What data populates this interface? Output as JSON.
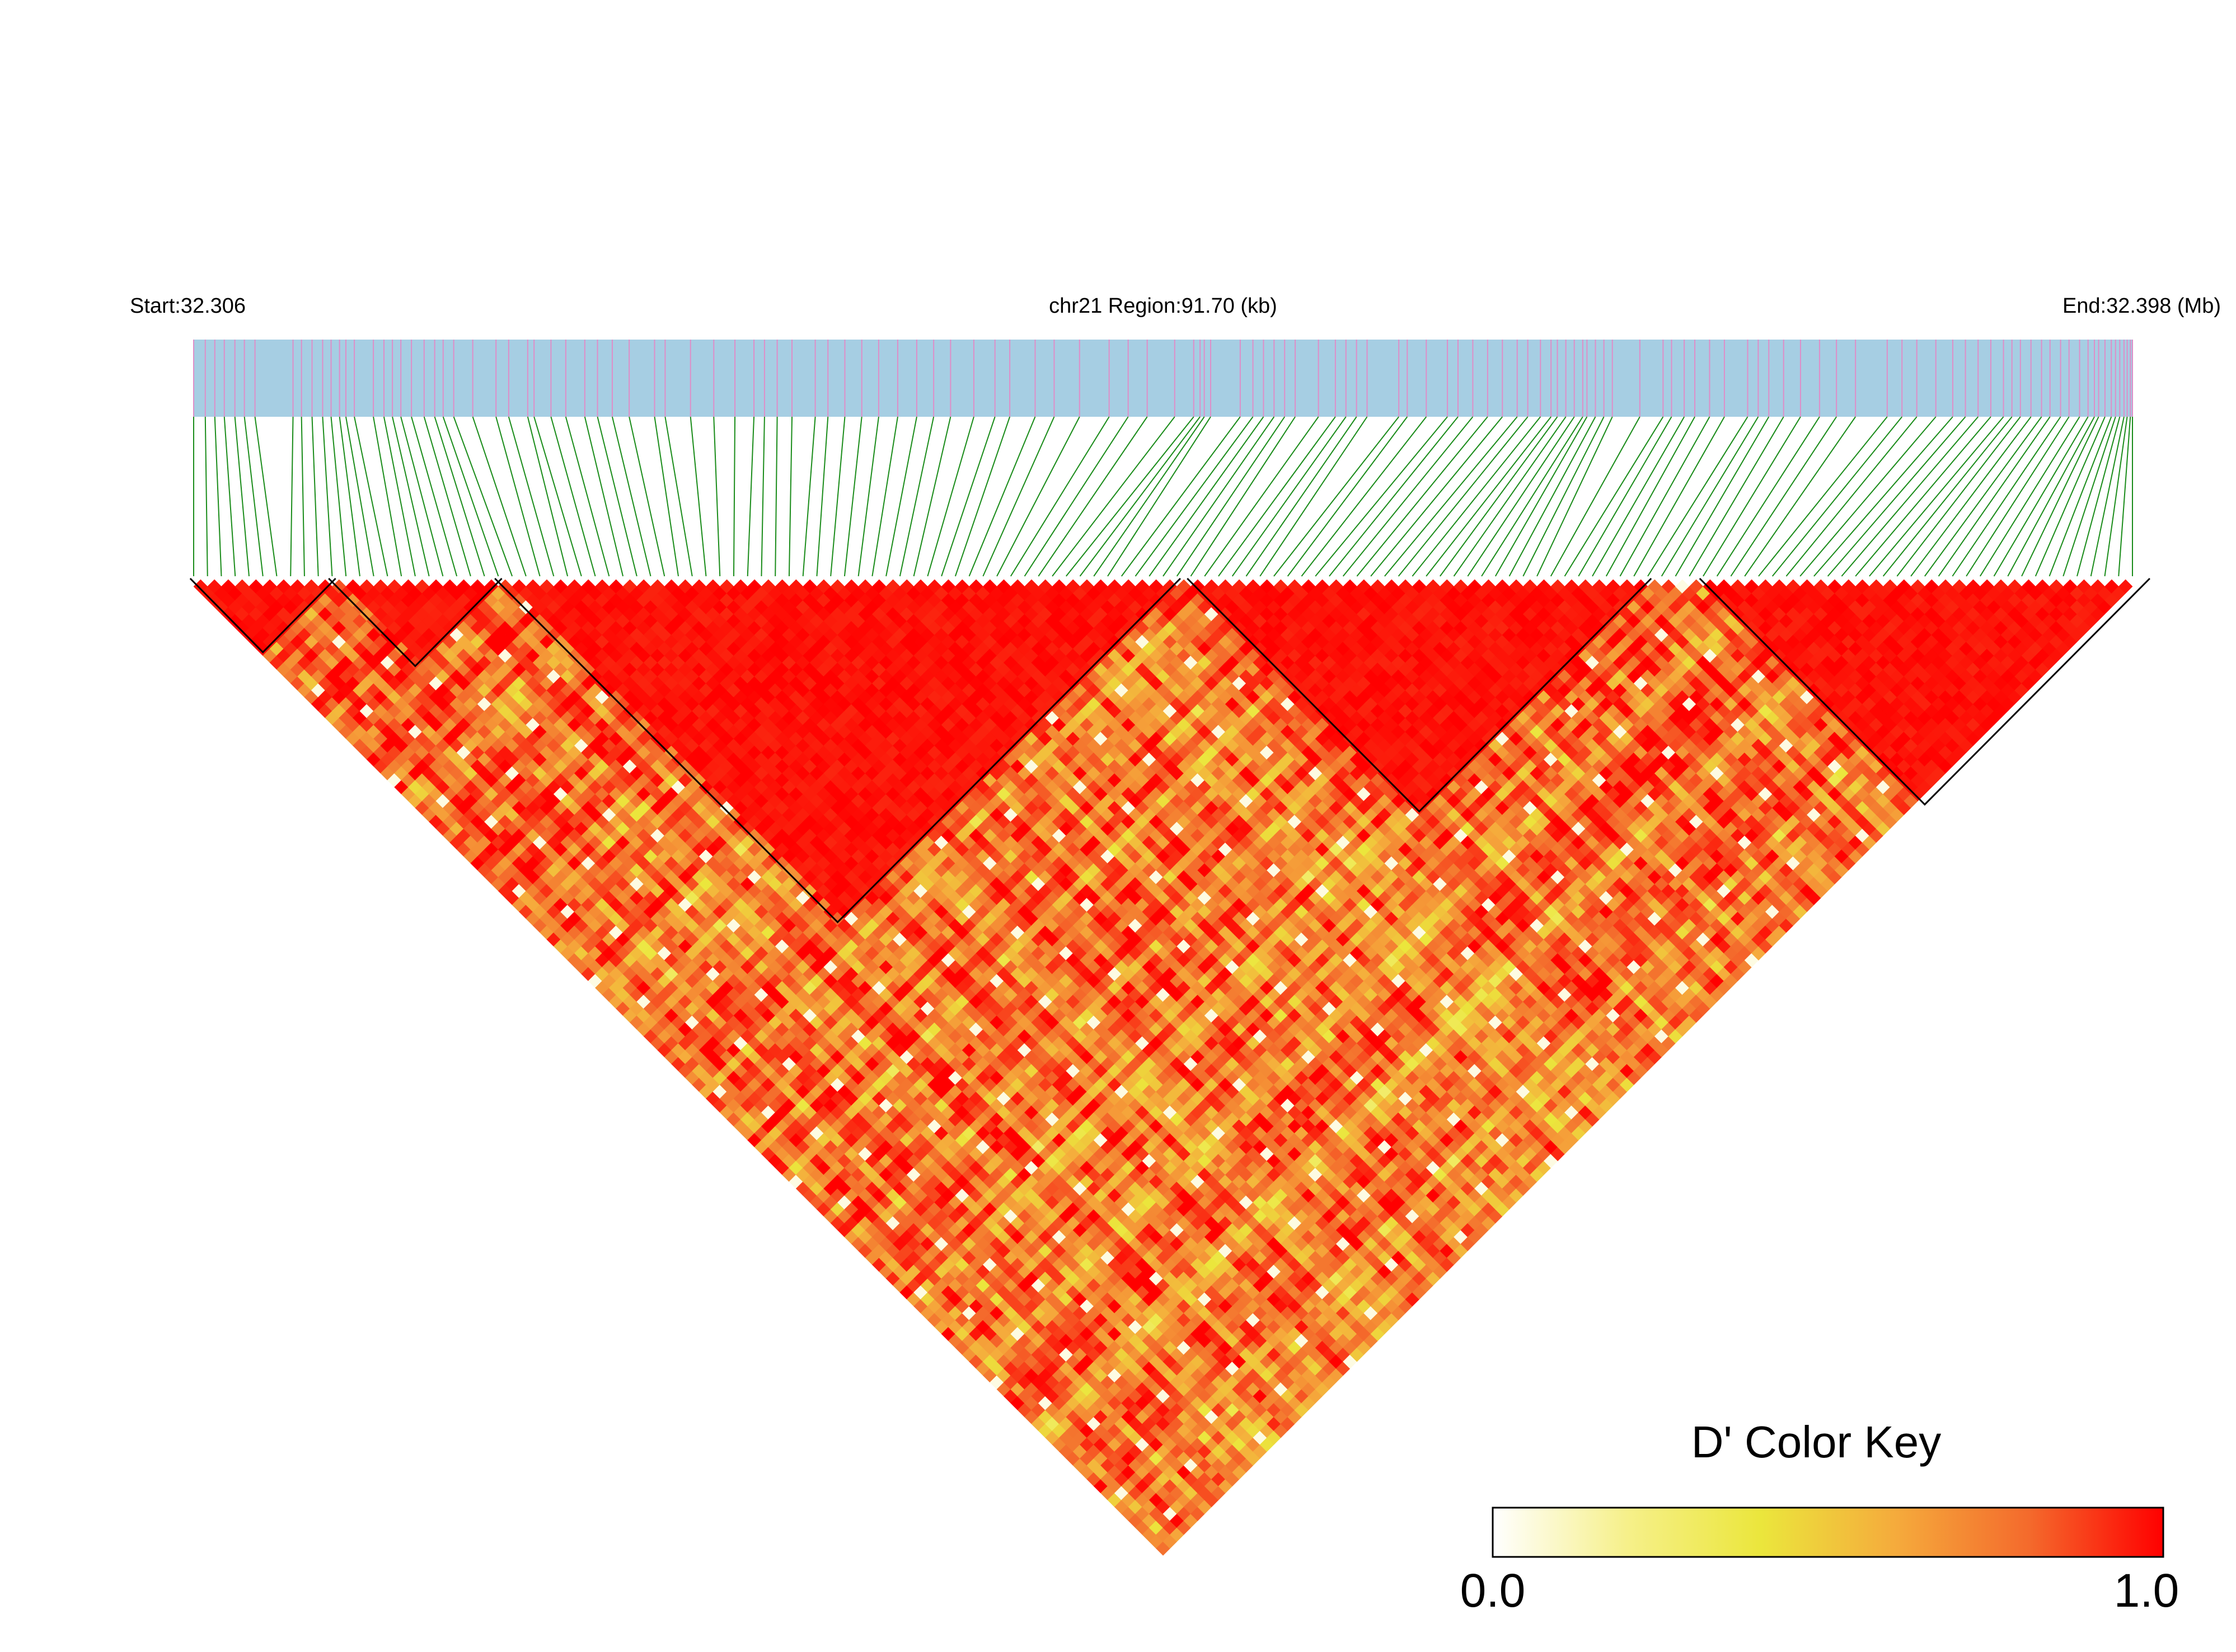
{
  "chart_data": {
    "type": "heatmap",
    "title": "",
    "header": {
      "start_label": "Start:32.306",
      "region_label": "chr21 Region:91.70 (kb)",
      "end_label": "End:32.398 (Mb)"
    },
    "region": {
      "chromosome": "chr21",
      "start_mb": 32.306,
      "end_mb": 32.398,
      "length_kb": 91.7
    },
    "n_snps": 141,
    "snp_offsets_kb": [
      0.0,
      0.55,
      1.0,
      1.45,
      1.95,
      2.4,
      2.9,
      4.7,
      5.1,
      5.6,
      6.1,
      6.5,
      6.9,
      7.2,
      7.6,
      8.5,
      9.0,
      9.4,
      9.8,
      10.3,
      10.9,
      11.4,
      11.8,
      12.3,
      13.2,
      14.3,
      14.9,
      15.8,
      16.1,
      16.9,
      17.6,
      18.5,
      19.1,
      19.8,
      20.6,
      21.8,
      22.3,
      23.5,
      24.6,
      25.6,
      26.5,
      27.0,
      27.6,
      28.3,
      29.4,
      30.0,
      30.8,
      31.6,
      32.4,
      33.3,
      34.2,
      35.0,
      35.8,
      36.9,
      37.9,
      38.6,
      39.8,
      40.7,
      41.9,
      43.3,
      44.2,
      45.1,
      46.4,
      47.3,
      47.6,
      47.8,
      48.1,
      49.5,
      50.1,
      50.6,
      51.1,
      51.6,
      52.1,
      53.2,
      54.0,
      54.5,
      55.0,
      55.5,
      57.0,
      57.4,
      58.3,
      59.3,
      59.8,
      60.5,
      61.2,
      61.9,
      62.6,
      63.1,
      63.7,
      64.2,
      64.5,
      64.9,
      65.3,
      65.7,
      65.9,
      66.3,
      66.7,
      67.1,
      68.4,
      69.5,
      69.9,
      70.5,
      71.0,
      71.7,
      72.4,
      73.5,
      74.0,
      74.5,
      75.2,
      76.0,
      76.9,
      77.7,
      78.6,
      80.1,
      80.8,
      81.5,
      82.4,
      83.2,
      83.8,
      84.4,
      85.0,
      85.6,
      86.0,
      86.4,
      86.9,
      87.4,
      87.8,
      88.3,
      88.7,
      89.2,
      89.6,
      89.9,
      90.1,
      90.4,
      90.7,
      90.9,
      91.1,
      91.3,
      91.45,
      91.6,
      91.7
    ],
    "haplotype_blocks": [
      {
        "snps": [
          0,
          10
        ]
      },
      {
        "snps": [
          10,
          22
        ]
      },
      {
        "snps": [
          22,
          71
        ]
      },
      {
        "snps": [
          72,
          105
        ]
      },
      {
        "snps": [
          109,
          141
        ]
      }
    ],
    "d_prime_model": {
      "within_block": 0.97,
      "between_blocks": 0.78,
      "variability": 0.35
    },
    "colors": {
      "track_background": "#a6cee3",
      "snp_tick": "#de8ec8",
      "connector": "#1a8c1a",
      "block_outline": "#000000"
    },
    "color_key": {
      "title": "D' Color Key",
      "min_label": "0.0",
      "max_label": "1.0",
      "min": 0.0,
      "max": 1.0,
      "stops": [
        "#ffffff",
        "#f6f08a",
        "#ebe63c",
        "#f5ab3c",
        "#f46a2c",
        "#ff0000"
      ]
    }
  }
}
